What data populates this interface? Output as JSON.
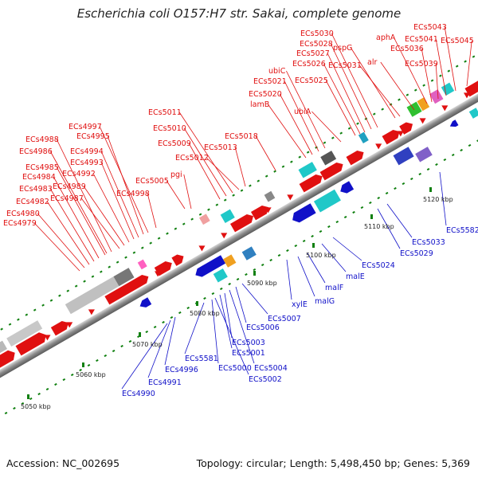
{
  "title": "Escherichia coli O157:H7 str. Sakai, complete genome",
  "footer": {
    "accession": "Accession: NC_002695",
    "stats": "Topology: circular; Length: 5,498,450 bp; Genes: 5,369"
  },
  "ticks": [
    "5050 kbp",
    "5060 kbp",
    "5070 kbp",
    "5080 kbp",
    "5090 kbp",
    "5100 kbp",
    "5110 kbp",
    "5120 kbp"
  ],
  "forward_labels": [
    "ECs4979",
    "ECs4980",
    "ECs4982",
    "ECs4983",
    "ECs4984",
    "ECs4985",
    "ECs4986",
    "ECs4988",
    "ECs4987",
    "ECs4989",
    "ECs4992",
    "ECs4993",
    "ECs4994",
    "ECs4995",
    "ECs4997",
    "ECs4998",
    "ECs5005",
    "pgi",
    "ECs5009",
    "ECs5010",
    "ECs5011",
    "ECs5012",
    "ECs5013",
    "ECs5018",
    "lamB",
    "ECs5020",
    "ECs5021",
    "ubiC",
    "ubiA",
    "ECs5025",
    "ECs5026",
    "ECs5027",
    "ECs5028",
    "ECs5030",
    "pspG",
    "ECs5031",
    "alr",
    "aphA",
    "ECs5036",
    "ECs5039",
    "ECs5041",
    "ECs5043",
    "ECs5045"
  ],
  "reverse_labels": [
    "ECs4990",
    "ECs4991",
    "ECs4996",
    "ECs5581",
    "ECs5000",
    "ECs5002",
    "ECs5001",
    "ECs5003",
    "ECs5004",
    "ECs5006",
    "ECs5007",
    "xylE",
    "malG",
    "malF",
    "malE",
    "ECs5024",
    "ECs5029",
    "ECs5033",
    "ECs5582"
  ],
  "colors": {
    "forward": "#e01010",
    "reverse": "#1010c8",
    "backbone": "#9a9a9a",
    "tick": "#108010"
  }
}
